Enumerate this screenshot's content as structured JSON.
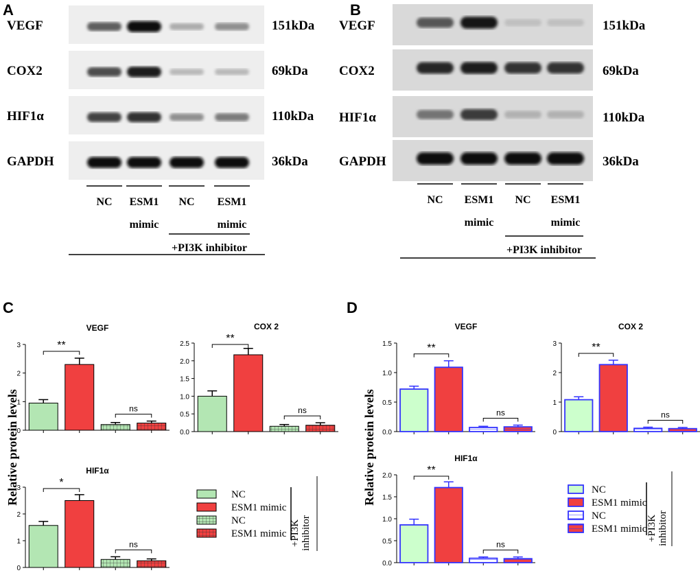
{
  "panels": {
    "A": {
      "letter": "A",
      "proteins": [
        {
          "name": "VEGF",
          "kda": "151kDa",
          "intensities": [
            0.55,
            1.0,
            0.15,
            0.3
          ]
        },
        {
          "name": "COX2",
          "kda": "69kDa",
          "intensities": [
            0.65,
            0.9,
            0.08,
            0.08
          ]
        },
        {
          "name": "HIF1α",
          "kda": "110kDa",
          "intensities": [
            0.7,
            0.8,
            0.3,
            0.4
          ]
        },
        {
          "name": "GAPDH",
          "kda": "36kDa",
          "intensities": [
            1.0,
            1.0,
            1.0,
            1.0
          ]
        }
      ],
      "lane_labels": [
        [
          "NC"
        ],
        [
          "ESM1",
          "mimic"
        ],
        [
          "NC"
        ],
        [
          "ESM1",
          "mimic"
        ]
      ],
      "inhibitor_label": "+PI3K inhibitor"
    },
    "B": {
      "letter": "B",
      "proteins": [
        {
          "name": "VEGF",
          "kda": "151kDa",
          "intensities": [
            0.6,
            0.95,
            0.05,
            0.05
          ]
        },
        {
          "name": "COX2",
          "kda": "69kDa",
          "intensities": [
            0.85,
            0.9,
            0.8,
            0.8
          ]
        },
        {
          "name": "HIF1α",
          "kda": "110kDa",
          "intensities": [
            0.45,
            0.75,
            0.12,
            0.12
          ]
        },
        {
          "name": "GAPDH",
          "kda": "36kDa",
          "intensities": [
            1.0,
            1.0,
            1.0,
            1.0
          ]
        }
      ],
      "lane_labels": [
        [
          "NC"
        ],
        [
          "ESM1",
          "mimic"
        ],
        [
          "NC"
        ],
        [
          "ESM1",
          "mimic"
        ]
      ],
      "inhibitor_label": "+PI3K inhibitor"
    },
    "C": {
      "letter": "C",
      "ylabel": "Relative protein levels"
    },
    "D": {
      "letter": "D",
      "ylabel": "Relative protein levels"
    }
  },
  "legends": {
    "C": {
      "items": [
        "NC",
        "ESM1 mimic",
        "NC",
        "ESM1 mimic"
      ],
      "bracket_label_1": "+PI3K",
      "bracket_label_2": "inhibitor"
    },
    "D": {
      "items": [
        "NC",
        "ESM1 mimic",
        "NC",
        "ESM1 mimic"
      ],
      "bracket_label_1": "+PI3K",
      "bracket_label_2": "inhibitor"
    }
  },
  "colors": {
    "C_fill": [
      "#b3e6b3",
      "#f04040",
      "#b3e6b3",
      "#f04040"
    ],
    "D_fill": [
      "#ccffcc",
      "#f04040",
      "#ffffff",
      "#f04040"
    ],
    "D_stroke": "#3333ff"
  },
  "chart_data": [
    {
      "type": "bar",
      "panel": "C",
      "title": "VEGF",
      "categories": [
        "NC",
        "ESM1 mimic",
        "NC +PI3K inhibitor",
        "ESM1 mimic +PI3K inhibitor"
      ],
      "values": [
        0.95,
        2.3,
        0.2,
        0.25
      ],
      "errors": [
        0.12,
        0.22,
        0.07,
        0.07
      ],
      "ylim": [
        0,
        3
      ],
      "yticks": [
        "0",
        "1",
        "2",
        "3"
      ],
      "significance": [
        "**",
        "ns"
      ]
    },
    {
      "type": "bar",
      "panel": "C",
      "title": "COX 2",
      "categories": [
        "NC",
        "ESM1 mimic",
        "NC +PI3K inhibitor",
        "ESM1 mimic +PI3K inhibitor"
      ],
      "values": [
        1.0,
        2.17,
        0.15,
        0.18
      ],
      "errors": [
        0.15,
        0.18,
        0.05,
        0.07
      ],
      "ylim": [
        0,
        2.5
      ],
      "yticks": [
        "0.0",
        "0.5",
        "1.0",
        "1.5",
        "2.0",
        "2.5"
      ],
      "significance": [
        "**",
        "ns"
      ]
    },
    {
      "type": "bar",
      "panel": "C",
      "title": "HIF1α",
      "categories": [
        "NC",
        "ESM1 mimic",
        "NC +PI3K inhibitor",
        "ESM1 mimic +PI3K inhibitor"
      ],
      "values": [
        1.57,
        2.5,
        0.3,
        0.25
      ],
      "errors": [
        0.15,
        0.22,
        0.1,
        0.07
      ],
      "ylim": [
        0,
        3
      ],
      "yticks": [
        "0",
        "1",
        "2",
        "3"
      ],
      "significance": [
        "*",
        "ns"
      ]
    },
    {
      "type": "bar",
      "panel": "D",
      "title": "VEGF",
      "categories": [
        "NC",
        "ESM1 mimic",
        "NC +PI3K inhibitor",
        "ESM1 mimic +PI3K inhibitor"
      ],
      "values": [
        0.72,
        1.09,
        0.07,
        0.08
      ],
      "errors": [
        0.05,
        0.11,
        0.02,
        0.03
      ],
      "ylim": [
        0,
        1.5
      ],
      "yticks": [
        "0.0",
        "0.5",
        "1.0",
        "1.5"
      ],
      "significance": [
        "**",
        "ns"
      ]
    },
    {
      "type": "bar",
      "panel": "D",
      "title": "COX 2",
      "categories": [
        "NC",
        "ESM1 mimic",
        "NC +PI3K inhibitor",
        "ESM1 mimic +PI3K inhibitor"
      ],
      "values": [
        1.08,
        2.27,
        0.11,
        0.1
      ],
      "errors": [
        0.1,
        0.15,
        0.04,
        0.04
      ],
      "ylim": [
        0,
        3
      ],
      "yticks": [
        "0",
        "1",
        "2",
        "3"
      ],
      "significance": [
        "**",
        "ns"
      ]
    },
    {
      "type": "bar",
      "panel": "D",
      "title": "HIF1α",
      "categories": [
        "NC",
        "ESM1 mimic",
        "NC +PI3K inhibitor",
        "ESM1 mimic +PI3K inhibitor"
      ],
      "values": [
        0.86,
        1.71,
        0.1,
        0.09
      ],
      "errors": [
        0.13,
        0.13,
        0.03,
        0.04
      ],
      "ylim": [
        0,
        2.0
      ],
      "yticks": [
        "0.0",
        "0.5",
        "1.0",
        "1.5",
        "2.0"
      ],
      "significance": [
        "**",
        "ns"
      ]
    }
  ]
}
